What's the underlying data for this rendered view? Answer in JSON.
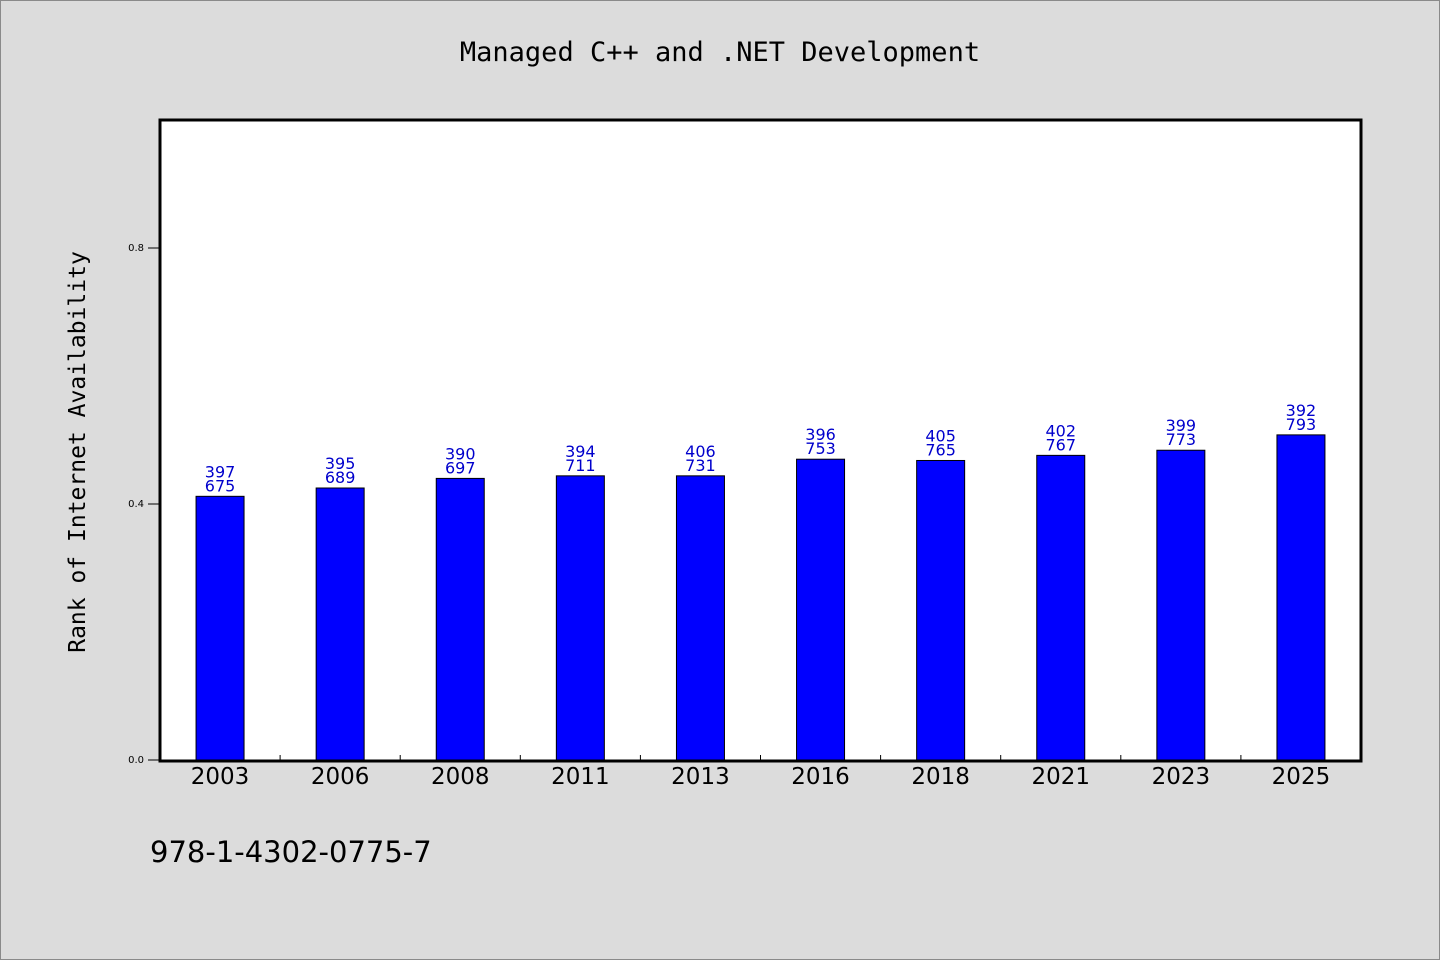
{
  "chart_data": {
    "type": "bar",
    "title": "Managed C++ and .NET Development",
    "ylabel": "Rank of Internet Availability",
    "xlabel": "",
    "ylim": [
      0,
      1.0
    ],
    "yticks": [
      "0.0",
      "0.4",
      "0.8"
    ],
    "grid": false,
    "categories": [
      "2003",
      "2006",
      "2008",
      "2011",
      "2013",
      "2016",
      "2018",
      "2021",
      "2023",
      "2025"
    ],
    "values": [
      0.412,
      0.425,
      0.44,
      0.444,
      0.444,
      0.47,
      0.468,
      0.476,
      0.484,
      0.508
    ],
    "bar_labels": [
      [
        "397",
        "675"
      ],
      [
        "395",
        "689"
      ],
      [
        "390",
        "697"
      ],
      [
        "394",
        "711"
      ],
      [
        "406",
        "731"
      ],
      [
        "396",
        "753"
      ],
      [
        "405",
        "765"
      ],
      [
        "402",
        "767"
      ],
      [
        "399",
        "773"
      ],
      [
        "392",
        "793"
      ]
    ],
    "bar_color": "#0000ff",
    "label_color": "#0000cc",
    "plot_background": "#ffffff",
    "page_background": "#dcdcdc"
  },
  "footer": {
    "code": "978-1-4302-0775-7"
  }
}
